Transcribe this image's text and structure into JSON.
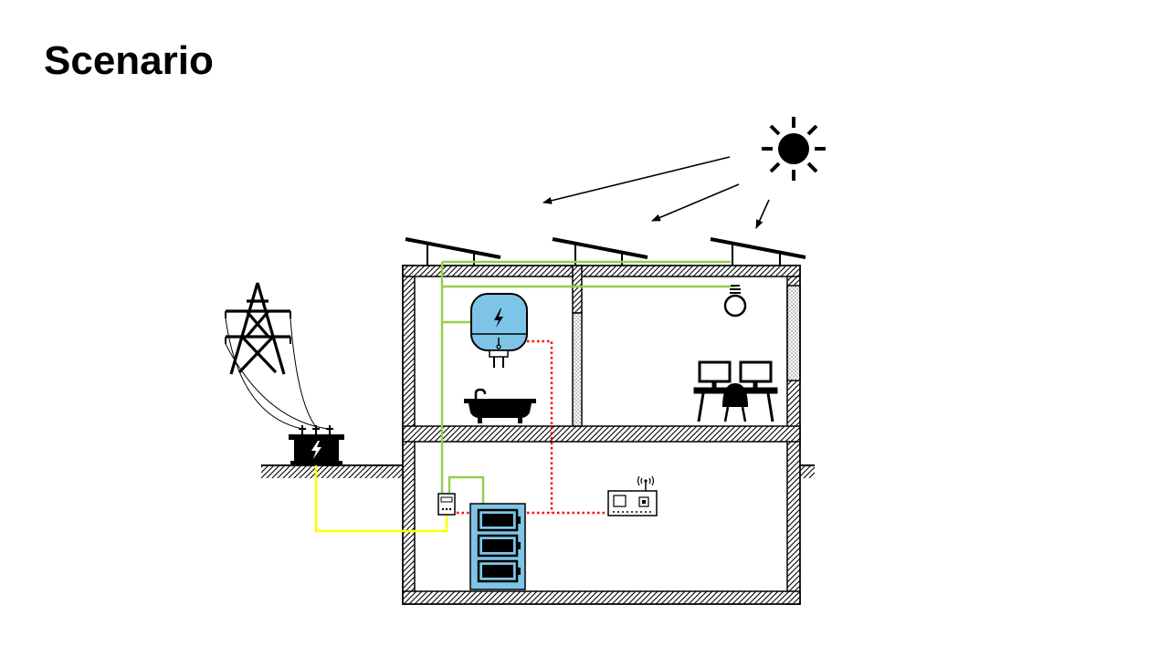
{
  "slide": {
    "title": "Scenario"
  },
  "colors": {
    "pv_wiring": "#92d050",
    "grid_wiring": "#ffff00",
    "data_link": "#ff0000",
    "device_fill": "#7ec4e6",
    "ink": "#000000"
  },
  "icons": [
    "sun-icon",
    "solar-panel-icon",
    "power-tower-icon",
    "transformer-icon",
    "water-heater-icon",
    "bathtub-icon",
    "light-bulb-icon",
    "desk-workstation-icon",
    "smart-meter-icon",
    "battery-storage-icon",
    "gateway-controller-icon"
  ]
}
